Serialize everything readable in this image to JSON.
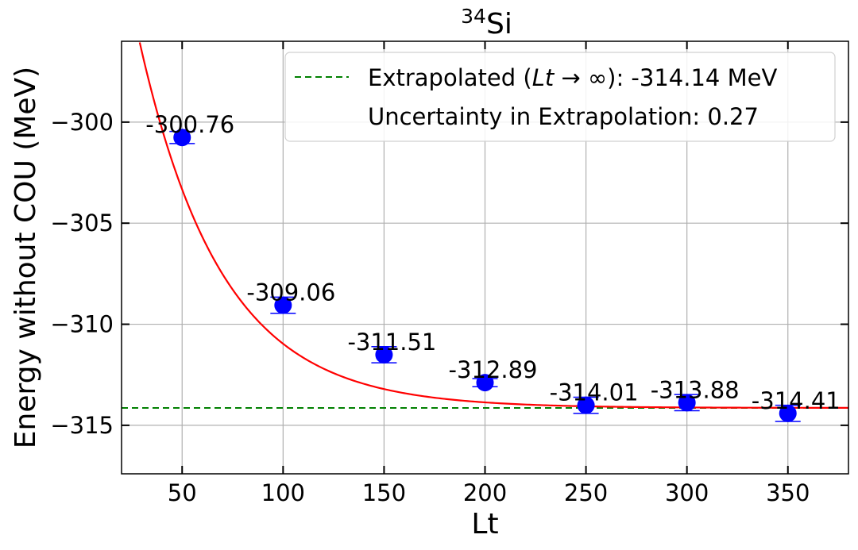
{
  "chart_data": {
    "type": "scatter",
    "title_main": "Si",
    "title_sup": "34",
    "xlabel": "Lt",
    "ylabel": "Energy without COU (MeV)",
    "xlim": [
      20,
      380
    ],
    "ylim": [
      -317.4,
      -296.0
    ],
    "xticks": [
      50,
      100,
      150,
      200,
      250,
      300,
      350
    ],
    "yticks": [
      -300,
      -305,
      -310,
      -315
    ],
    "ytick_labels": [
      "−300",
      "−305",
      "−310",
      "−315"
    ],
    "grid": true,
    "points": [
      {
        "x": 50,
        "y": -300.76,
        "label": "-300.76",
        "err": 0.3
      },
      {
        "x": 100,
        "y": -309.06,
        "label": "-309.06",
        "err": 0.4
      },
      {
        "x": 150,
        "y": -311.51,
        "label": "-311.51",
        "err": 0.4
      },
      {
        "x": 200,
        "y": -312.89,
        "label": "-312.89",
        "err": 0.2
      },
      {
        "x": 250,
        "y": -314.01,
        "label": "-314.01",
        "err": 0.4
      },
      {
        "x": 300,
        "y": -313.88,
        "label": "-313.88",
        "err": 0.4
      },
      {
        "x": 350,
        "y": -314.41,
        "label": "-314.41",
        "err": 0.4
      }
    ],
    "fit": {
      "asymptote": -314.14,
      "amplitude": 36.8,
      "decay": 0.0245
    },
    "extrapolated_value": -314.14,
    "colors": {
      "points": "#0000ff",
      "fit": "#ff0000",
      "extrapolation": "#008000",
      "grid": "#b0b0b0"
    },
    "legend": {
      "placement": "top-right",
      "entries": [
        {
          "prefix": "Extrapolated (",
          "italic": "Lt",
          "arrow": " → ∞",
          "suffix": "): -314.14 MeV"
        },
        {
          "text": "Uncertainty in Extrapolation: 0.27"
        }
      ]
    }
  }
}
